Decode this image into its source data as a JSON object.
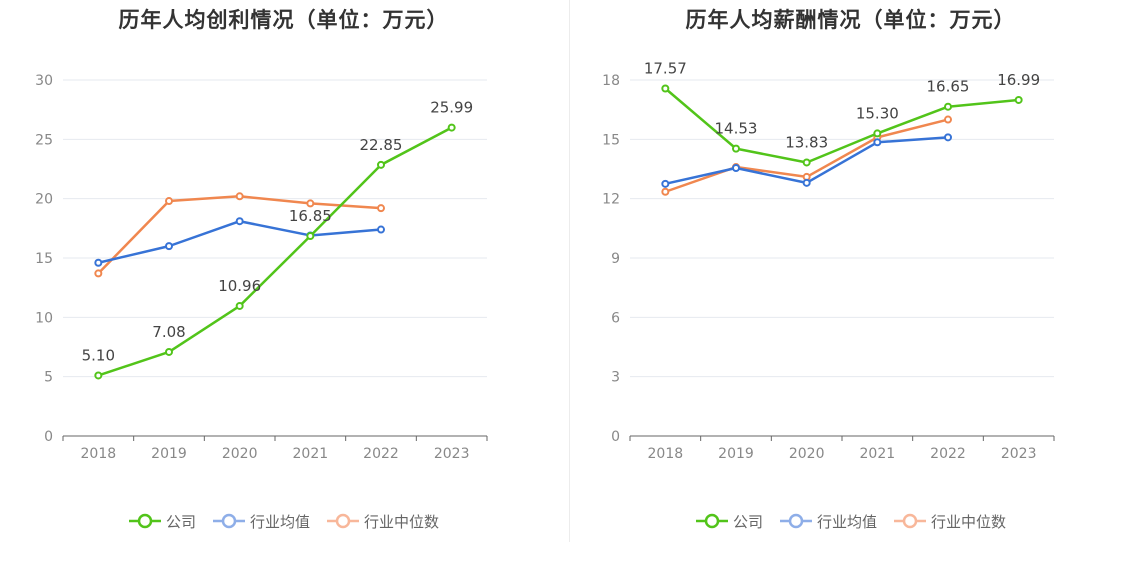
{
  "colors": {
    "company": "#52c41a",
    "industry_avg": "#3773d6",
    "industry_median": "#f0874f",
    "legend_avg": "#8eaee8",
    "legend_median": "#f8b79a",
    "axis": "#888888",
    "grid": "#e6e9ef",
    "label": "#444444"
  },
  "legend": {
    "company": "公司",
    "industry_avg": "行业均值",
    "industry_median": "行业中位数"
  },
  "chart_data": [
    {
      "type": "line",
      "title": "历年人均创利情况（单位：万元）",
      "categories": [
        "2018",
        "2019",
        "2020",
        "2021",
        "2022",
        "2023"
      ],
      "ylim": [
        0,
        30
      ],
      "yticks": [
        0,
        5,
        10,
        15,
        20,
        25,
        30
      ],
      "grid": true,
      "legend_position": "bottom",
      "series": [
        {
          "key": "company",
          "name": "公司",
          "values": [
            5.1,
            7.08,
            10.96,
            16.85,
            22.85,
            25.99
          ],
          "labels": [
            "5.10",
            "7.08",
            "10.96",
            "16.85",
            "22.85",
            "25.99"
          ]
        },
        {
          "key": "industry_avg",
          "name": "行业均值",
          "values": [
            14.6,
            16.0,
            18.1,
            16.9,
            17.4,
            null
          ]
        },
        {
          "key": "industry_median",
          "name": "行业中位数",
          "values": [
            13.7,
            19.8,
            20.2,
            19.6,
            19.2,
            null
          ]
        }
      ]
    },
    {
      "type": "line",
      "title": "历年人均薪酬情况（单位：万元）",
      "categories": [
        "2018",
        "2019",
        "2020",
        "2021",
        "2022",
        "2023"
      ],
      "ylim": [
        0,
        18
      ],
      "yticks": [
        0,
        3,
        6,
        9,
        12,
        15,
        18
      ],
      "grid": true,
      "legend_position": "bottom",
      "series": [
        {
          "key": "company",
          "name": "公司",
          "values": [
            17.57,
            14.53,
            13.83,
            15.3,
            16.65,
            16.99
          ],
          "labels": [
            "17.57",
            "14.53",
            "13.83",
            "15.30",
            "16.65",
            "16.99"
          ]
        },
        {
          "key": "industry_avg",
          "name": "行业均值",
          "values": [
            12.75,
            13.55,
            12.8,
            14.85,
            15.1,
            null
          ]
        },
        {
          "key": "industry_median",
          "name": "行业中位数",
          "values": [
            12.35,
            13.6,
            13.1,
            15.1,
            16.0,
            null
          ]
        }
      ]
    }
  ]
}
